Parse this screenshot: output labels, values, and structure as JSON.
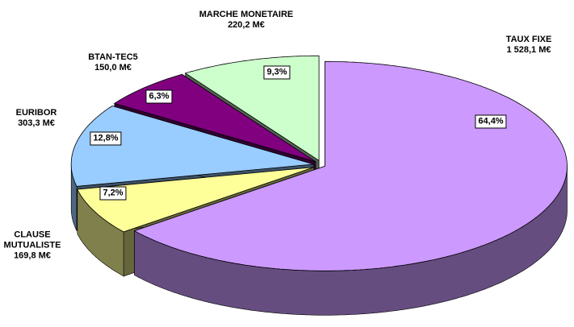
{
  "chart_data": {
    "type": "pie3d",
    "categories": [
      "TAUX FIXE",
      "CLAUSE MUTUALISTE",
      "EURIBOR",
      "BTAN-TEC5",
      "MARCHE MONETAIRE"
    ],
    "amount_labels": [
      "1 528,1 M€",
      "169,8 M€",
      "303,3 M€",
      "150,0 M€",
      "220,2 M€"
    ],
    "values": [
      64.4,
      7.2,
      12.8,
      6.3,
      9.3
    ],
    "value_labels": [
      "64,4%",
      "7,2%",
      "12,8%",
      "6,3%",
      "9,3%"
    ],
    "colors": [
      "#cc99ff",
      "#ffff99",
      "#99ccff",
      "#800080",
      "#ccffcc"
    ]
  }
}
